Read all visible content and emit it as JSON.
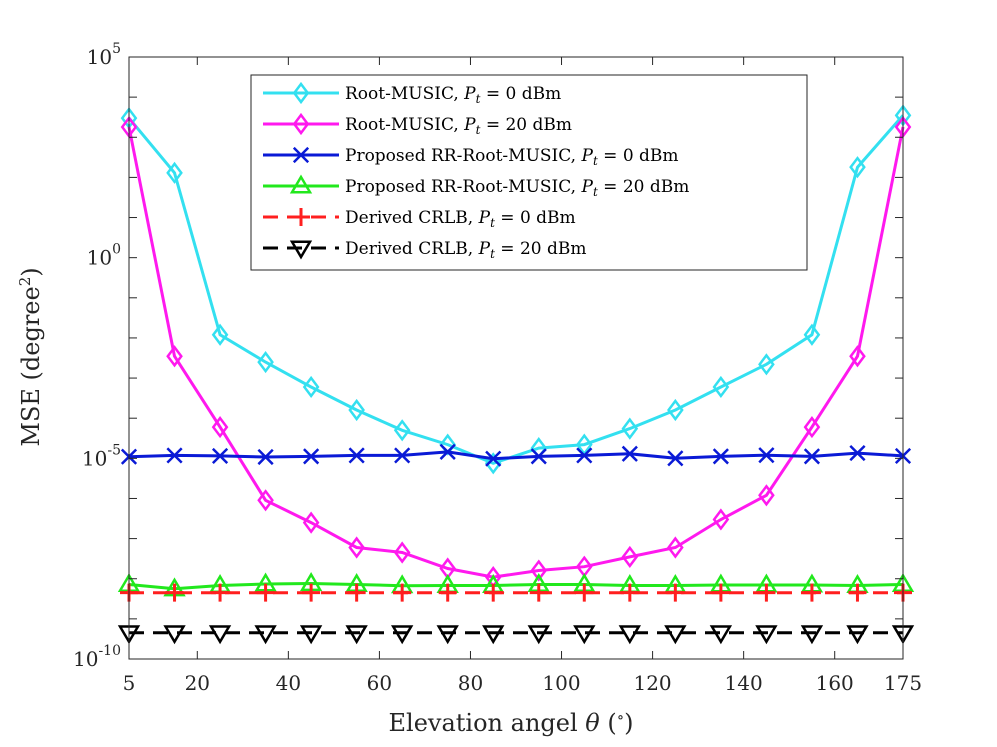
{
  "chart_data": {
    "type": "line",
    "xlabel": "Elevation angel θ (°)",
    "ylabel": "MSE (degree²)",
    "x_ticks": [
      5,
      20,
      40,
      60,
      80,
      100,
      120,
      140,
      160,
      175
    ],
    "xlim": [
      5,
      175
    ],
    "y_scale": "log",
    "ylim": [
      1e-10,
      100000.0
    ],
    "y_ticks": [
      {
        "value": 100000.0,
        "label": "10",
        "exp": "5"
      },
      {
        "value": 1,
        "label": "10",
        "exp": "0"
      },
      {
        "value": 1e-05,
        "label": "10",
        "exp": "-5"
      },
      {
        "value": 1e-10,
        "label": "10",
        "exp": "-10"
      }
    ],
    "grid": false,
    "legend_position": "top-center",
    "x": [
      5,
      15,
      25,
      35,
      45,
      55,
      65,
      75,
      85,
      95,
      105,
      115,
      125,
      135,
      145,
      155,
      165,
      175
    ],
    "series": [
      {
        "name": "Root-MUSIC, P_t = 0 dBm",
        "legend_parts": [
          "Root-MUSIC, ",
          "P",
          "t",
          " = 0 dBm"
        ],
        "color": "#33e0f0",
        "marker": "diamond",
        "dash": "solid",
        "values": [
          3000,
          130,
          0.012,
          0.0025,
          0.0006,
          0.00016,
          5e-05,
          2.2e-05,
          7.5e-06,
          1.8e-05,
          2.2e-05,
          5.5e-05,
          0.00016,
          0.0006,
          0.0022,
          0.012,
          180,
          3500
        ]
      },
      {
        "name": "Root-MUSIC, P_t = 20 dBm",
        "legend_parts": [
          "Root-MUSIC, ",
          "P",
          "t",
          " = 20 dBm"
        ],
        "color": "#ff19ee",
        "marker": "diamond",
        "dash": "solid",
        "values": [
          1800,
          0.0035,
          6e-05,
          9e-07,
          2.5e-07,
          6e-08,
          4.5e-08,
          1.8e-08,
          1.1e-08,
          1.6e-08,
          2e-08,
          3.5e-08,
          6e-08,
          3e-07,
          1.2e-06,
          6e-05,
          0.0035,
          1800
        ]
      },
      {
        "name": "Proposed RR-Root-MUSIC, P_t = 0 dBm",
        "legend_parts": [
          "Proposed RR-Root-MUSIC, ",
          "P",
          "t",
          " = 0 dBm"
        ],
        "color": "#0a1ad6",
        "marker": "x",
        "dash": "solid",
        "values": [
          1.1e-05,
          1.18e-05,
          1.15e-05,
          1.08e-05,
          1.12e-05,
          1.18e-05,
          1.18e-05,
          1.45e-05,
          9.8e-06,
          1.12e-05,
          1.18e-05,
          1.3e-05,
          1e-05,
          1.12e-05,
          1.2e-05,
          1.12e-05,
          1.35e-05,
          1.15e-05
        ]
      },
      {
        "name": "Proposed RR-Root-MUSIC, P_t = 20 dBm",
        "legend_parts": [
          "Proposed RR-Root-MUSIC, ",
          "P",
          "t",
          " = 20 dBm"
        ],
        "color": "#22e81d",
        "marker": "triangle-up",
        "dash": "solid",
        "values": [
          7.2e-09,
          5.6e-09,
          6.8e-09,
          7.4e-09,
          7.6e-09,
          7.2e-09,
          6.7e-09,
          6.8e-09,
          6.8e-09,
          7.2e-09,
          7.2e-09,
          6.8e-09,
          6.8e-09,
          7e-09,
          7e-09,
          7e-09,
          6.8e-09,
          7.2e-09
        ]
      },
      {
        "name": "Derived CRLB, P_t = 0 dBm",
        "legend_parts": [
          "Derived CRLB, ",
          "P",
          "t",
          " = 0 dBm"
        ],
        "color": "#ff1f1f",
        "marker": "plus",
        "dash": "dashed",
        "values": [
          4.5e-09,
          4.5e-09,
          4.5e-09,
          4.5e-09,
          4.5e-09,
          4.5e-09,
          4.5e-09,
          4.5e-09,
          4.5e-09,
          4.5e-09,
          4.5e-09,
          4.5e-09,
          4.5e-09,
          4.5e-09,
          4.5e-09,
          4.5e-09,
          4.5e-09,
          4.5e-09
        ]
      },
      {
        "name": "Derived CRLB, P_t = 20 dBm",
        "legend_parts": [
          "Derived CRLB, ",
          "P",
          "t",
          " = 20 dBm"
        ],
        "color": "#000000",
        "marker": "triangle-down",
        "dash": "dashed",
        "values": [
          4.5e-10,
          4.5e-10,
          4.5e-10,
          4.5e-10,
          4.5e-10,
          4.5e-10,
          4.5e-10,
          4.5e-10,
          4.5e-10,
          4.5e-10,
          4.5e-10,
          4.5e-10,
          4.5e-10,
          4.5e-10,
          4.5e-10,
          4.5e-10,
          4.5e-10,
          4.5e-10
        ]
      }
    ]
  },
  "labels": {
    "xlabel_prefix": "Elevation angel ",
    "xlabel_theta": "θ",
    "xlabel_unit_open": " (",
    "xlabel_degree": "∘",
    "xlabel_unit_close": ")",
    "ylabel_main": "MSE (degree",
    "ylabel_sup": "2",
    "ylabel_close": ")"
  }
}
